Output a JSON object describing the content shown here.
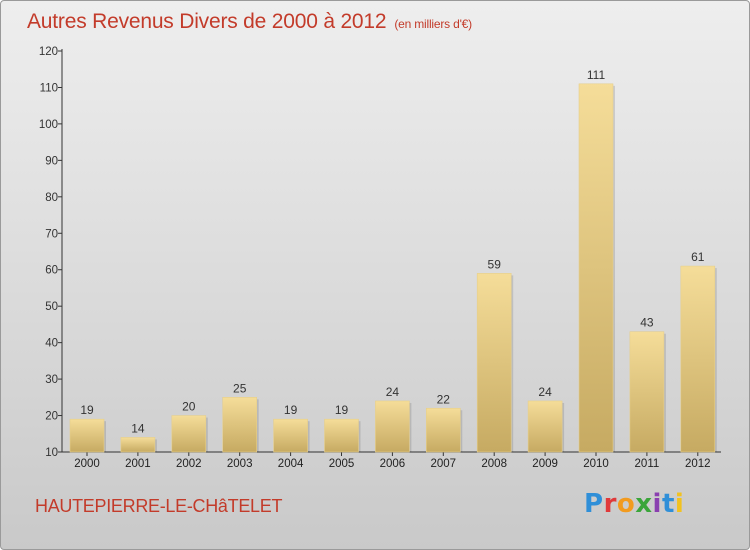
{
  "title": "Autres Revenus Divers de 2000 à 2012",
  "subtitle": "(en milliers d'€)",
  "commune": "HAUTEPIERRE-LE-CHâTELET",
  "logo_letters": [
    "P",
    "r",
    "o",
    "x",
    "i",
    "t",
    "i"
  ],
  "colors": {
    "title": "#c33b2a",
    "bar_light": "#f5dd99",
    "bar_dark": "#c6aa62"
  },
  "chart_data": {
    "type": "bar",
    "title": "Autres Revenus Divers de 2000 à 2012",
    "subtitle": "(en milliers d'€)",
    "xlabel": "",
    "ylabel": "",
    "categories": [
      "2000",
      "2001",
      "2002",
      "2003",
      "2004",
      "2005",
      "2006",
      "2007",
      "2008",
      "2009",
      "2010",
      "2011",
      "2012"
    ],
    "values": [
      19,
      14,
      20,
      25,
      19,
      19,
      24,
      22,
      59,
      24,
      111,
      43,
      61
    ],
    "ylim": [
      10,
      120
    ],
    "yticks": [
      10,
      20,
      30,
      40,
      50,
      60,
      70,
      80,
      90,
      100,
      110,
      120
    ],
    "grid": false,
    "data_labels": true
  }
}
